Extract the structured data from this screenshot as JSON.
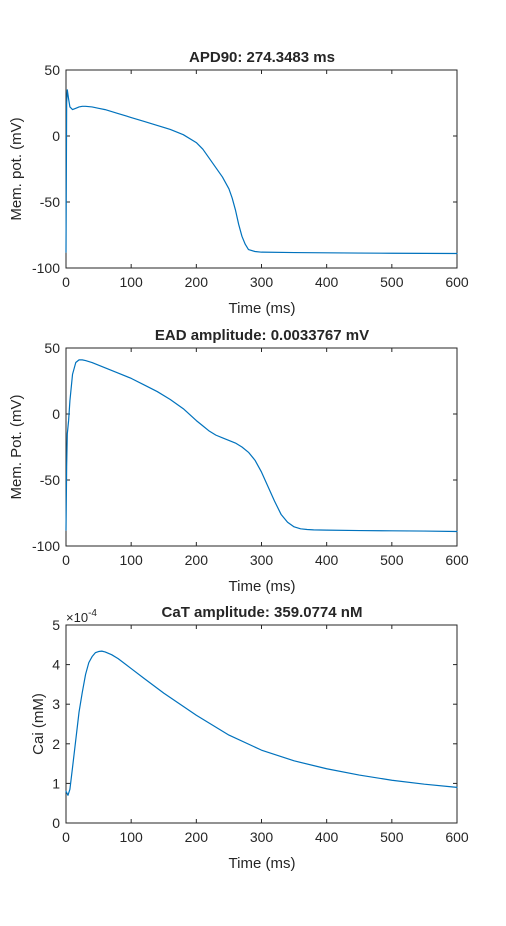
{
  "colors": {
    "line": "#0072BD",
    "axis": "#262626",
    "background": "#ffffff"
  },
  "chart_data": [
    {
      "type": "line",
      "title": "APD90: 274.3483 ms",
      "xlabel": "Time (ms)",
      "ylabel": "Mem. pot. (mV)",
      "xlim": [
        0,
        600
      ],
      "ylim": [
        -100,
        50
      ],
      "xticks": [
        0,
        100,
        200,
        300,
        400,
        500,
        600
      ],
      "yticks": [
        -100,
        -50,
        0,
        50
      ],
      "grid": false,
      "series": [
        {
          "x": [
            0,
            1,
            2,
            4,
            6,
            10,
            15,
            20,
            25,
            30,
            40,
            50,
            60,
            80,
            100,
            120,
            140,
            160,
            180,
            200,
            210,
            220,
            230,
            240,
            250,
            255,
            260,
            265,
            270,
            275,
            280,
            290,
            300,
            350,
            400,
            450,
            500,
            550,
            600
          ],
          "y": [
            -88,
            25,
            35,
            28,
            22,
            20,
            21,
            22,
            22.5,
            22.5,
            22,
            21,
            20,
            17,
            14,
            11,
            8,
            5,
            1,
            -5,
            -10,
            -17,
            -24,
            -31,
            -40,
            -47,
            -56,
            -67,
            -76,
            -82,
            -86,
            -87.5,
            -88,
            -88.3,
            -88.5,
            -88.7,
            -88.8,
            -88.9,
            -89
          ]
        }
      ]
    },
    {
      "type": "line",
      "title": "EAD amplitude: 0.0033767 mV",
      "xlabel": "Time (ms)",
      "ylabel": "Mem. Pot. (mV)",
      "xlim": [
        0,
        600
      ],
      "ylim": [
        -100,
        50
      ],
      "xticks": [
        0,
        100,
        200,
        300,
        400,
        500,
        600
      ],
      "yticks": [
        -100,
        -50,
        0,
        50
      ],
      "grid": false,
      "series": [
        {
          "x": [
            0,
            1,
            2,
            4,
            6,
            10,
            15,
            20,
            25,
            30,
            40,
            60,
            80,
            100,
            120,
            140,
            160,
            180,
            200,
            210,
            220,
            230,
            240,
            250,
            260,
            270,
            280,
            290,
            300,
            310,
            320,
            330,
            340,
            350,
            360,
            370,
            380,
            400,
            450,
            500,
            550,
            600
          ],
          "y": [
            -88,
            -40,
            -15,
            -5,
            10,
            30,
            39,
            41,
            41,
            40.5,
            39,
            35,
            31,
            27,
            22,
            17,
            11,
            4,
            -5,
            -9,
            -13,
            -16,
            -18,
            -20,
            -22,
            -25,
            -29,
            -35,
            -44,
            -55,
            -66,
            -76,
            -82,
            -85.5,
            -87,
            -87.5,
            -87.8,
            -88,
            -88.3,
            -88.5,
            -88.7,
            -89
          ]
        }
      ]
    },
    {
      "type": "line",
      "title": "CaT amplitude: 359.0774 nM",
      "xlabel": "Time (ms)",
      "ylabel": "Cai (mM)",
      "exponent": "×10",
      "exponent_power": "-4",
      "xlim": [
        0,
        600
      ],
      "ylim": [
        0,
        0.0005
      ],
      "xticks": [
        0,
        100,
        200,
        300,
        400,
        500,
        600
      ],
      "yticks": [
        0,
        0.0001,
        0.0002,
        0.0003,
        0.0004,
        0.0005
      ],
      "ytick_labels": [
        "0",
        "1",
        "2",
        "3",
        "4",
        "5"
      ],
      "grid": false,
      "series": [
        {
          "x": [
            0,
            3,
            6,
            10,
            15,
            20,
            25,
            30,
            35,
            40,
            45,
            50,
            55,
            60,
            70,
            80,
            100,
            120,
            150,
            200,
            250,
            300,
            350,
            400,
            450,
            500,
            550,
            600
          ],
          "y": [
            8e-05,
            7e-05,
            8.5e-05,
            0.00014,
            0.00021,
            0.00028,
            0.00033,
            0.000375,
            0.000405,
            0.00042,
            0.00043,
            0.000433,
            0.000434,
            0.000432,
            0.000425,
            0.000415,
            0.00039,
            0.000365,
            0.000328,
            0.000272,
            0.000222,
            0.000184,
            0.000157,
            0.000137,
            0.000121,
            0.000108,
            9.8e-05,
            9e-05
          ]
        }
      ]
    }
  ]
}
